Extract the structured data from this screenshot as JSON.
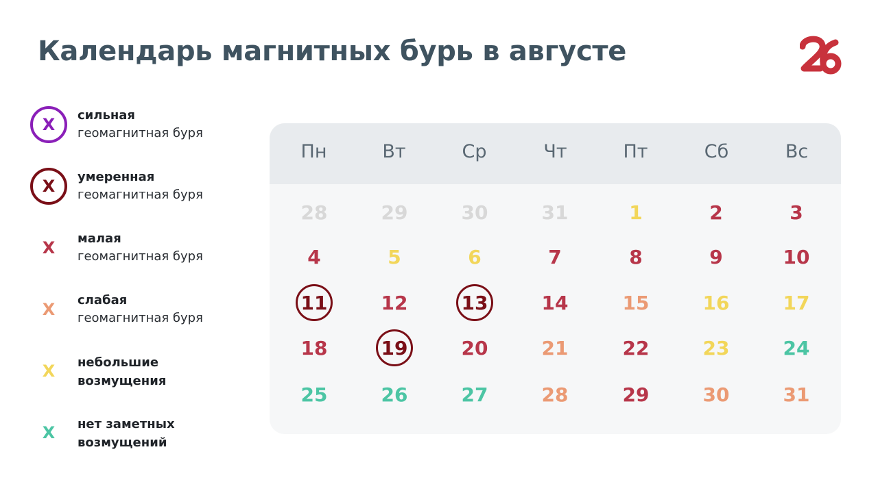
{
  "title": "Календарь магнитных бурь в августе",
  "logo_text": "26",
  "colors": {
    "strong": "#8a1fb8",
    "moderate": "#7a0f17",
    "minor": "#b7364a",
    "weak": "#eb9a74",
    "small": "#f2d65a",
    "none": "#4cc5a4",
    "inactive": "#d8d8d8"
  },
  "legend": [
    {
      "mark": "X",
      "level": "strong",
      "title": "сильная",
      "desc": "геомагнитная буря"
    },
    {
      "mark": "X",
      "level": "moderate",
      "title": "умеренная",
      "desc": "геомагнитная буря"
    },
    {
      "mark": "X",
      "level": "minor",
      "title": "малая",
      "desc": "геомагнитная буря"
    },
    {
      "mark": "X",
      "level": "weak",
      "title": "слабая",
      "desc": "геомагнитная буря"
    },
    {
      "mark": "X",
      "level": "small",
      "title": "небольшие возмущения",
      "desc": ""
    },
    {
      "mark": "X",
      "level": "none",
      "title": "нет заметных возмущений",
      "desc": ""
    }
  ],
  "weekdays": [
    "Пн",
    "Вт",
    "Ср",
    "Чт",
    "Пт",
    "Сб",
    "Вс"
  ],
  "weeks": [
    [
      {
        "day": "28",
        "level": "inactive"
      },
      {
        "day": "29",
        "level": "inactive"
      },
      {
        "day": "30",
        "level": "inactive"
      },
      {
        "day": "31",
        "level": "inactive"
      },
      {
        "day": "1",
        "level": "small"
      },
      {
        "day": "2",
        "level": "minor"
      },
      {
        "day": "3",
        "level": "minor"
      }
    ],
    [
      {
        "day": "4",
        "level": "minor"
      },
      {
        "day": "5",
        "level": "small"
      },
      {
        "day": "6",
        "level": "small"
      },
      {
        "day": "7",
        "level": "minor"
      },
      {
        "day": "8",
        "level": "minor"
      },
      {
        "day": "9",
        "level": "minor"
      },
      {
        "day": "10",
        "level": "minor"
      }
    ],
    [
      {
        "day": "11",
        "level": "moderate"
      },
      {
        "day": "12",
        "level": "minor"
      },
      {
        "day": "13",
        "level": "moderate"
      },
      {
        "day": "14",
        "level": "minor"
      },
      {
        "day": "15",
        "level": "weak"
      },
      {
        "day": "16",
        "level": "small"
      },
      {
        "day": "17",
        "level": "small"
      }
    ],
    [
      {
        "day": "18",
        "level": "minor"
      },
      {
        "day": "19",
        "level": "moderate"
      },
      {
        "day": "20",
        "level": "minor"
      },
      {
        "day": "21",
        "level": "weak"
      },
      {
        "day": "22",
        "level": "minor"
      },
      {
        "day": "23",
        "level": "small"
      },
      {
        "day": "24",
        "level": "none"
      }
    ],
    [
      {
        "day": "25",
        "level": "none"
      },
      {
        "day": "26",
        "level": "none"
      },
      {
        "day": "27",
        "level": "none"
      },
      {
        "day": "28",
        "level": "weak"
      },
      {
        "day": "29",
        "level": "minor"
      },
      {
        "day": "30",
        "level": "weak"
      },
      {
        "day": "31",
        "level": "weak"
      }
    ]
  ]
}
